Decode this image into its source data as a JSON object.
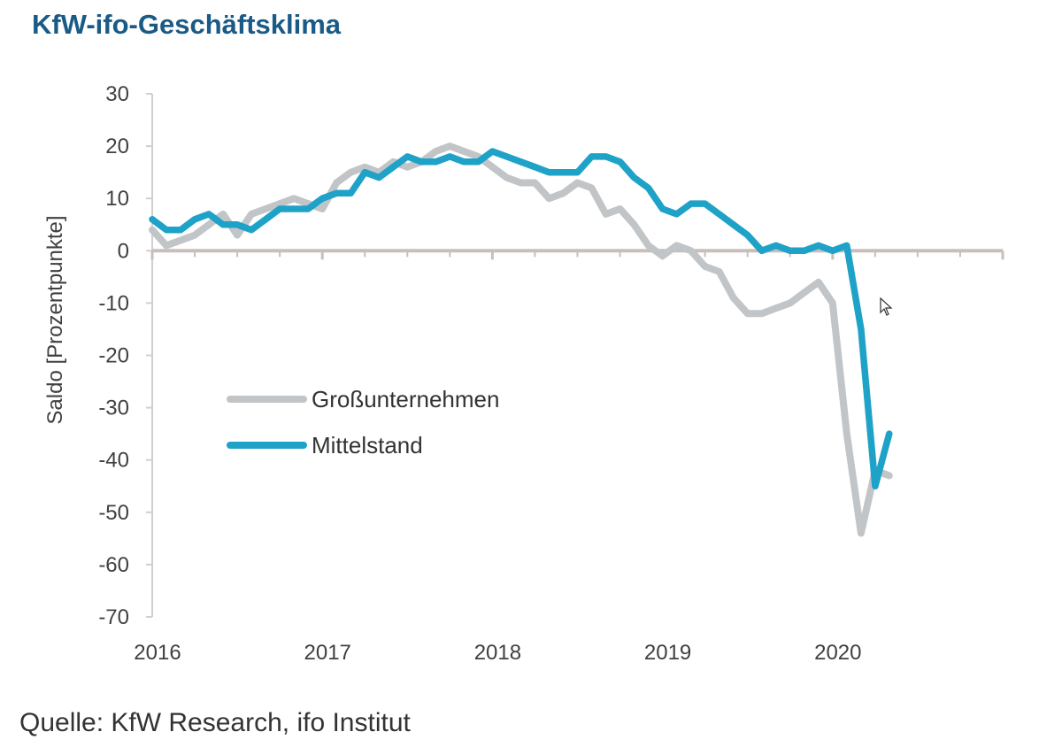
{
  "title": "KfW-ifo-Geschäftsklima",
  "source": "Quelle: KfW Research, ifo Institut",
  "colors": {
    "title": "#1a5a86",
    "gross": "#c2c5c7",
    "mittel": "#1fa2c8",
    "zero_axis": "#c8bfbb",
    "axis": "#d0d0d0"
  },
  "chart_data": {
    "type": "line",
    "title": "KfW-ifo-Geschäftsklima",
    "ylabel": "Saldo [Prozentpunkte]",
    "xlabel": "",
    "ylim": [
      -70,
      30
    ],
    "yticks": [
      30,
      20,
      10,
      0,
      -10,
      -20,
      -30,
      -40,
      -50,
      -60,
      -70
    ],
    "xlim": [
      2016,
      2021
    ],
    "xticks": [
      2016,
      2017,
      2018,
      2019,
      2020
    ],
    "legend": "center-left",
    "series": [
      {
        "name": "Großunternehmen",
        "color": "#c2c5c7",
        "x": [
          2016.0,
          2016.083,
          2016.167,
          2016.25,
          2016.333,
          2016.417,
          2016.5,
          2016.583,
          2016.667,
          2016.75,
          2016.833,
          2016.917,
          2017.0,
          2017.083,
          2017.167,
          2017.25,
          2017.333,
          2017.417,
          2017.5,
          2017.583,
          2017.667,
          2017.75,
          2017.833,
          2017.917,
          2018.0,
          2018.083,
          2018.167,
          2018.25,
          2018.333,
          2018.417,
          2018.5,
          2018.583,
          2018.667,
          2018.75,
          2018.833,
          2018.917,
          2019.0,
          2019.083,
          2019.167,
          2019.25,
          2019.333,
          2019.417,
          2019.5,
          2019.583,
          2019.667,
          2019.75,
          2019.833,
          2019.917,
          2020.0,
          2020.083,
          2020.167,
          2020.25,
          2020.333
        ],
        "values": [
          4,
          1,
          2,
          3,
          5,
          7,
          3,
          7,
          8,
          9,
          10,
          9,
          8,
          13,
          15,
          16,
          15,
          17,
          16,
          17,
          19,
          20,
          19,
          18,
          16,
          14,
          13,
          13,
          10,
          11,
          13,
          12,
          7,
          8,
          5,
          1,
          -1,
          1,
          0,
          -3,
          -4,
          -9,
          -12,
          -12,
          -11,
          -10,
          -8,
          -6,
          -10,
          -35,
          -54,
          -42,
          -43
        ]
      },
      {
        "name": "Mittelstand",
        "color": "#1fa2c8",
        "x": [
          2016.0,
          2016.083,
          2016.167,
          2016.25,
          2016.333,
          2016.417,
          2016.5,
          2016.583,
          2016.667,
          2016.75,
          2016.833,
          2016.917,
          2017.0,
          2017.083,
          2017.167,
          2017.25,
          2017.333,
          2017.417,
          2017.5,
          2017.583,
          2017.667,
          2017.75,
          2017.833,
          2017.917,
          2018.0,
          2018.083,
          2018.167,
          2018.25,
          2018.333,
          2018.417,
          2018.5,
          2018.583,
          2018.667,
          2018.75,
          2018.833,
          2018.917,
          2019.0,
          2019.083,
          2019.167,
          2019.25,
          2019.333,
          2019.417,
          2019.5,
          2019.583,
          2019.667,
          2019.75,
          2019.833,
          2019.917,
          2020.0,
          2020.083,
          2020.167,
          2020.25,
          2020.333
        ],
        "values": [
          6,
          4,
          4,
          6,
          7,
          5,
          5,
          4,
          6,
          8,
          8,
          8,
          10,
          11,
          11,
          15,
          14,
          16,
          18,
          17,
          17,
          18,
          17,
          17,
          19,
          18,
          17,
          16,
          15,
          15,
          15,
          18,
          18,
          17,
          14,
          12,
          8,
          7,
          9,
          9,
          7,
          5,
          3,
          0,
          1,
          0,
          0,
          1,
          0,
          1,
          -15,
          -45,
          -35
        ]
      }
    ]
  }
}
